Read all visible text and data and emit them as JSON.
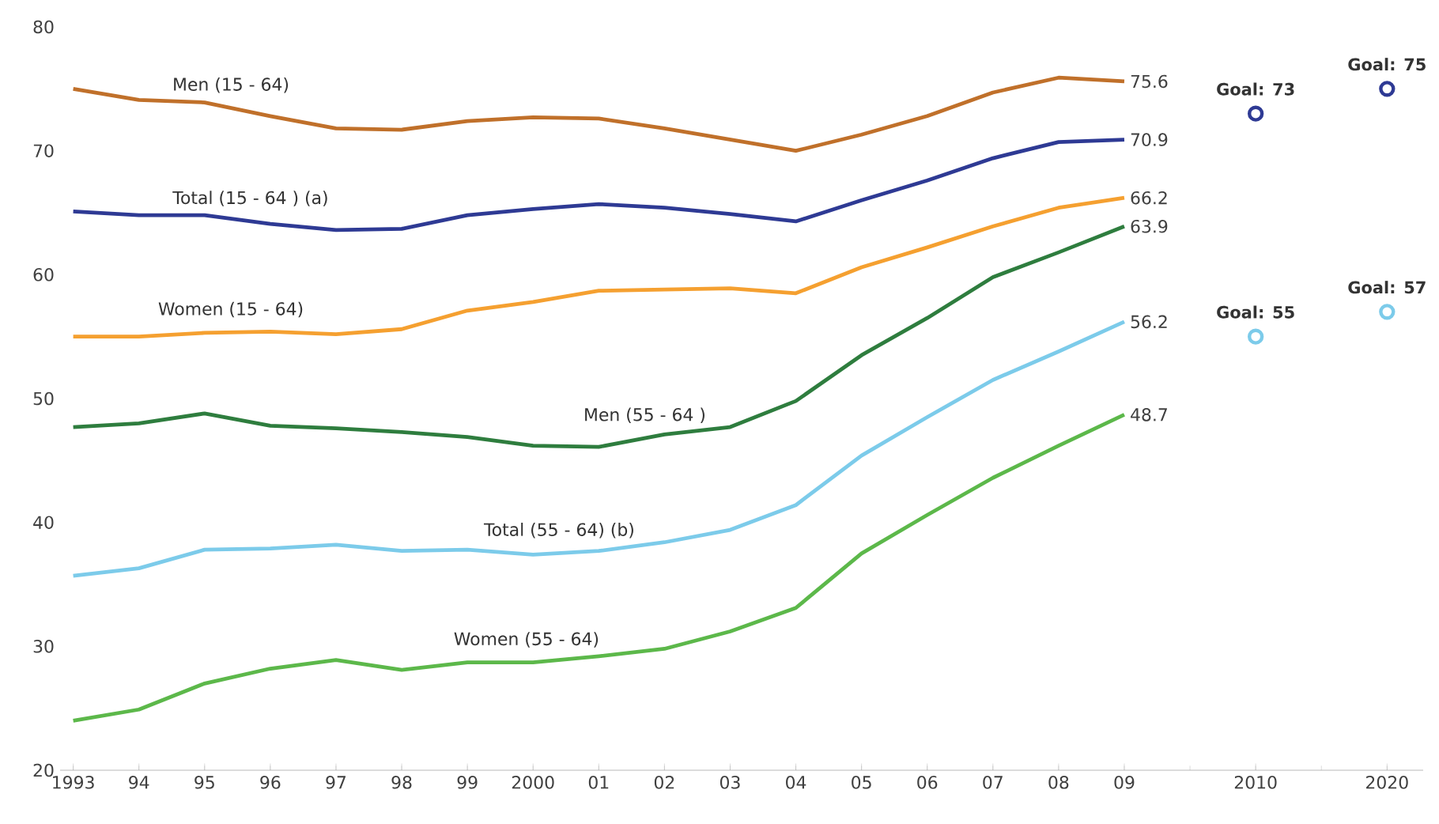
{
  "chart_data": {
    "type": "line",
    "categories": [
      "1993",
      "94",
      "95",
      "96",
      "97",
      "98",
      "99",
      "2000",
      "01",
      "02",
      "03",
      "04",
      "05",
      "06",
      "07",
      "08",
      "09",
      null,
      "2010",
      null,
      "2020"
    ],
    "ylim": [
      20,
      80
    ],
    "yticks": [
      20,
      30,
      40,
      50,
      60,
      70,
      80
    ],
    "line_style": "solid",
    "series": [
      {
        "name": "Men (15 - 64)",
        "color": "#c0702a",
        "values": [
          75.0,
          74.1,
          73.9,
          72.8,
          71.8,
          71.7,
          72.4,
          72.7,
          72.6,
          71.8,
          70.9,
          70.0,
          71.3,
          72.8,
          74.7,
          75.9,
          75.6,
          null,
          null,
          null,
          null
        ],
        "value_labels": [
          null,
          null,
          null,
          null,
          null,
          null,
          null,
          null,
          null,
          null,
          null,
          null,
          null,
          null,
          null,
          null,
          "75.6",
          null,
          null,
          null,
          null
        ]
      },
      {
        "name": "Total (15 - 64 ) (a)",
        "color": "#2e3a94",
        "values": [
          65.1,
          64.8,
          64.8,
          64.1,
          63.6,
          63.7,
          64.8,
          65.3,
          65.7,
          65.4,
          64.9,
          64.3,
          66.0,
          67.6,
          69.4,
          70.7,
          70.9,
          null,
          null,
          null,
          null
        ],
        "value_labels": [
          null,
          null,
          null,
          null,
          null,
          null,
          null,
          null,
          null,
          null,
          null,
          null,
          null,
          null,
          null,
          null,
          "70.9",
          null,
          null,
          null,
          null
        ]
      },
      {
        "name": "Women (15 - 64)",
        "color": "#f5a030",
        "values": [
          55.0,
          55.0,
          55.3,
          55.4,
          55.2,
          55.6,
          57.1,
          57.8,
          58.7,
          58.8,
          58.9,
          58.5,
          60.6,
          62.2,
          63.9,
          65.4,
          66.2,
          null,
          null,
          null,
          null
        ],
        "value_labels": [
          null,
          null,
          null,
          null,
          null,
          null,
          null,
          null,
          null,
          null,
          null,
          null,
          null,
          null,
          null,
          null,
          "66.2",
          null,
          null,
          null,
          null
        ]
      },
      {
        "name": "Men (55 - 64 )",
        "color": "#2e7d3e",
        "values": [
          47.7,
          48.0,
          48.8,
          47.8,
          47.6,
          47.3,
          46.9,
          46.2,
          46.1,
          47.1,
          47.7,
          49.8,
          53.5,
          56.5,
          59.8,
          61.8,
          63.9,
          null,
          null,
          null,
          null
        ],
        "value_labels": [
          null,
          null,
          null,
          null,
          null,
          null,
          null,
          null,
          null,
          null,
          null,
          null,
          null,
          null,
          null,
          null,
          "63.9",
          null,
          null,
          null,
          null
        ]
      },
      {
        "name": "Total (55 - 64) (b)",
        "color": "#7ccbea",
        "values": [
          35.7,
          36.3,
          37.8,
          37.9,
          38.2,
          37.7,
          37.8,
          37.4,
          37.7,
          38.4,
          39.4,
          41.4,
          45.4,
          48.5,
          51.5,
          53.8,
          56.2,
          null,
          null,
          null,
          null
        ],
        "value_labels": [
          null,
          null,
          null,
          null,
          null,
          null,
          null,
          null,
          null,
          null,
          null,
          null,
          null,
          null,
          null,
          null,
          "56.2",
          null,
          null,
          null,
          null
        ]
      },
      {
        "name": "Women (55 - 64)",
        "color": "#5cb84a",
        "values": [
          24.0,
          24.9,
          27.0,
          28.2,
          28.9,
          28.1,
          28.7,
          28.7,
          29.2,
          29.8,
          31.2,
          33.1,
          37.5,
          40.6,
          43.6,
          46.2,
          48.7,
          null,
          null,
          null,
          null
        ],
        "value_labels": [
          null,
          null,
          null,
          null,
          null,
          null,
          null,
          null,
          null,
          null,
          null,
          null,
          null,
          null,
          null,
          null,
          "48.7",
          null,
          null,
          null,
          null
        ]
      },
      {
        "type": "scatter",
        "marker": "circle",
        "color": "#2e3a94",
        "values": [
          null,
          null,
          null,
          null,
          null,
          null,
          null,
          null,
          null,
          null,
          null,
          null,
          null,
          null,
          null,
          null,
          null,
          null,
          73,
          null,
          75
        ]
      },
      {
        "type": "scatter",
        "marker": "circle",
        "color": "#7ccbea",
        "values": [
          null,
          null,
          null,
          null,
          null,
          null,
          null,
          null,
          null,
          null,
          null,
          null,
          null,
          null,
          null,
          null,
          null,
          null,
          55,
          null,
          57
        ]
      }
    ],
    "annotations": [
      {
        "text": "Goal: 73",
        "x": "2010",
        "y": 73
      },
      {
        "text": "Goal: 75",
        "x": "2020",
        "y": 75
      },
      {
        "text": "Goal: 55",
        "x": "2010",
        "y": 55
      },
      {
        "text": "Goal: 57",
        "x": "2020",
        "y": 57
      }
    ]
  }
}
